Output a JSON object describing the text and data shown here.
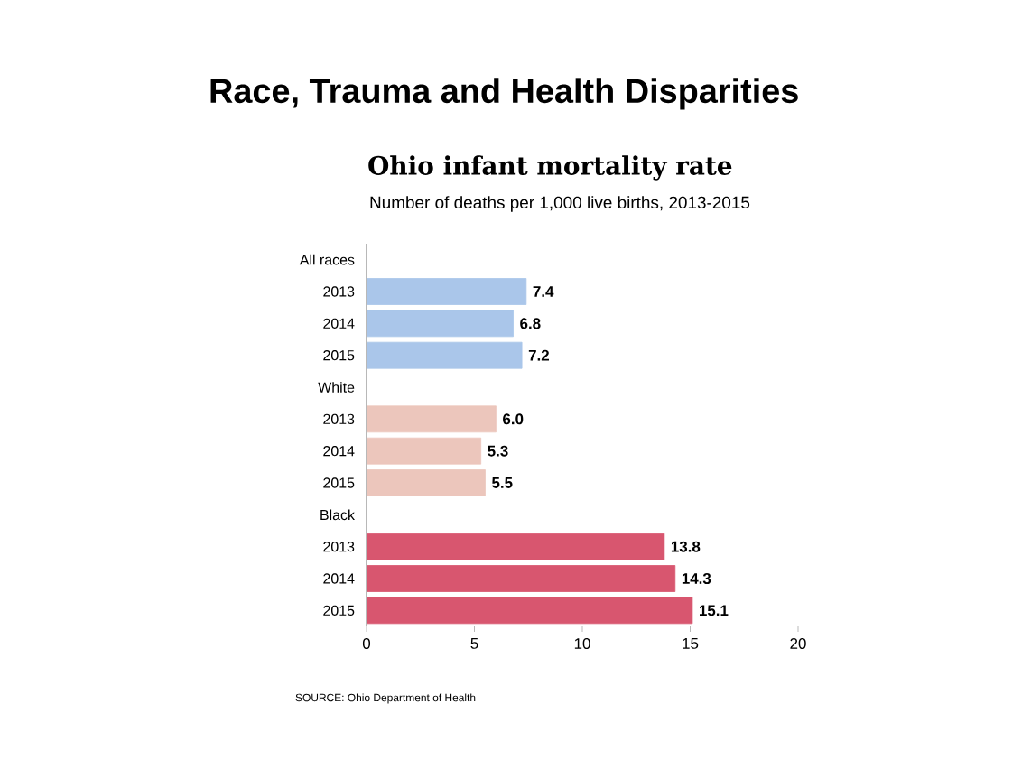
{
  "chart_data": {
    "type": "bar",
    "orientation": "horizontal",
    "title": "Race, Trauma and Health Disparities",
    "subtitle": "Ohio infant mortality rate",
    "annotations": [
      "Number of deaths per 1,000 live births, 2013-2015",
      "SOURCE: Ohio Department of Health"
    ],
    "categories": [
      "All races",
      "2013",
      "2014",
      "2015",
      "White",
      "2013",
      "2014",
      "2015",
      "Black",
      "2013",
      "2014",
      "2015"
    ],
    "values": [
      null,
      7.4,
      6.8,
      7.2,
      null,
      6.0,
      5.3,
      5.5,
      null,
      13.8,
      14.3,
      15.1
    ],
    "value_labels": [
      null,
      "7.4",
      "6.8",
      "7.2",
      null,
      "6.0",
      "5.3",
      "5.5",
      null,
      "13.8",
      "14.3",
      "15.1"
    ],
    "colors": [
      null,
      "#aac6ea",
      "#aac6ea",
      "#aac6ea",
      null,
      "#ecc6bc",
      "#ecc6bc",
      "#ecc6bc",
      null,
      "#d8566f",
      "#d8566f",
      "#d8566f"
    ],
    "xlim": [
      0,
      20
    ],
    "xticks": [
      0,
      5,
      10,
      15,
      20
    ]
  }
}
